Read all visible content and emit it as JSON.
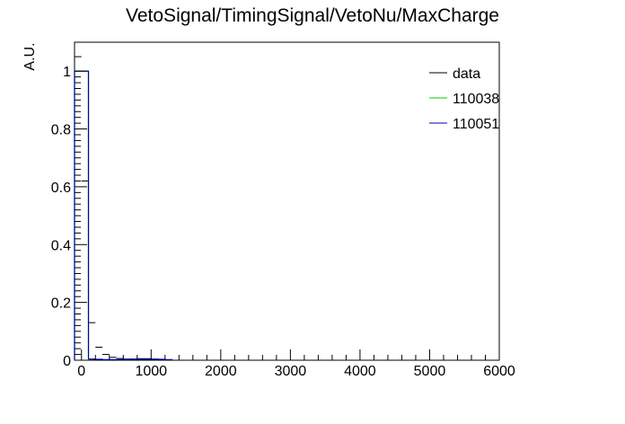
{
  "chart_data": {
    "type": "histogram",
    "title": "VetoSignal/TimingSignal/VetoNu/MaxCharge",
    "ylabel": "A.U.",
    "xlabel": "",
    "xlim": [
      -100,
      6000
    ],
    "ylim": [
      0,
      1.1
    ],
    "x_ticks": [
      0,
      1000,
      2000,
      3000,
      4000,
      5000,
      6000
    ],
    "y_ticks": [
      0,
      0.2,
      0.4,
      0.6,
      0.8,
      1
    ],
    "x_tick_labels": [
      "0",
      "1000",
      "2000",
      "3000",
      "4000",
      "5000",
      "6000"
    ],
    "y_tick_labels": [
      "0",
      "0.2",
      "0.4",
      "0.6",
      "0.8",
      "1"
    ],
    "grid": false,
    "legend_position": "top-right",
    "bin_width": 100,
    "series": [
      {
        "name": "data",
        "color": "#000000",
        "style": "points",
        "points": [
          {
            "x": -50,
            "y": 1.05
          },
          {
            "x": 50,
            "y": 0.62
          },
          {
            "x": 150,
            "y": 0.13
          },
          {
            "x": 250,
            "y": 0.045
          },
          {
            "x": 350,
            "y": 0.02
          },
          {
            "x": 450,
            "y": 0.01
          },
          {
            "x": 550,
            "y": 0.006
          },
          {
            "x": 650,
            "y": 0.004
          },
          {
            "x": 750,
            "y": 0.003
          },
          {
            "x": 850,
            "y": 0.002
          },
          {
            "x": 950,
            "y": 0.002
          },
          {
            "x": 1050,
            "y": 0.001
          },
          {
            "x": 1150,
            "y": 0.001
          },
          {
            "x": 1250,
            "y": 0.001
          }
        ]
      },
      {
        "name": "110038",
        "color": "#00cc00",
        "style": "hist",
        "bins": [
          {
            "x0": -100,
            "x1": 0,
            "y": 1.0
          },
          {
            "x0": 0,
            "x1": 100,
            "y": 1.0
          }
        ]
      },
      {
        "name": "110051",
        "color": "#0000aa",
        "style": "hist",
        "bins": [
          {
            "x0": -100,
            "x1": 0,
            "y": 1.0
          },
          {
            "x0": 0,
            "x1": 100,
            "y": 1.0
          },
          {
            "x0": 100,
            "x1": 200,
            "y": 0.004
          },
          {
            "x0": 200,
            "x1": 300,
            "y": 0.003
          },
          {
            "x0": 300,
            "x1": 400,
            "y": 0.002
          },
          {
            "x0": 400,
            "x1": 500,
            "y": 0.002
          },
          {
            "x0": 500,
            "x1": 600,
            "y": 0.002
          },
          {
            "x0": 600,
            "x1": 700,
            "y": 0.002
          },
          {
            "x0": 700,
            "x1": 800,
            "y": 0.004
          },
          {
            "x0": 800,
            "x1": 900,
            "y": 0.005
          },
          {
            "x0": 900,
            "x1": 1000,
            "y": 0.005
          },
          {
            "x0": 1000,
            "x1": 1100,
            "y": 0.004
          },
          {
            "x0": 1100,
            "x1": 1200,
            "y": 0.003
          },
          {
            "x0": 1200,
            "x1": 1300,
            "y": 0.002
          }
        ]
      }
    ]
  }
}
